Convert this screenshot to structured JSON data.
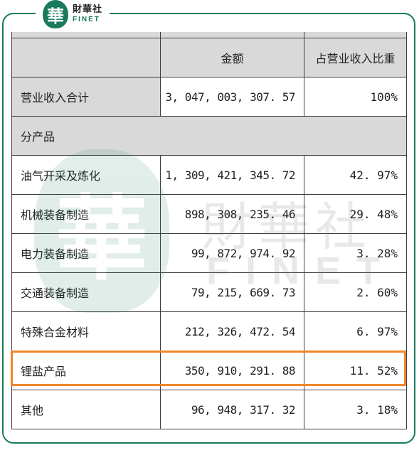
{
  "logo": {
    "mark": "華",
    "cn": "財華社",
    "en": "FINET"
  },
  "watermark": {
    "mark": "華",
    "cn": "財華社",
    "en": "FINET"
  },
  "table": {
    "headers": {
      "amount": "金额",
      "ratio": "占营业收入比重"
    },
    "total": {
      "name": "营业收入合计",
      "amount": "3, 047, 003, 307. 57",
      "ratio": "100%"
    },
    "section": "分产品",
    "rows": [
      {
        "name": "油气开采及炼化",
        "amount": "1, 309, 421, 345. 72",
        "ratio": "42. 97%"
      },
      {
        "name": "机械装备制造",
        "amount": "898, 308, 235. 46",
        "ratio": "29. 48%"
      },
      {
        "name": "电力装备制造",
        "amount": "99, 872, 974. 92",
        "ratio": "3. 28%"
      },
      {
        "name": "交通装备制造",
        "amount": "79, 215, 669. 73",
        "ratio": "2. 60%"
      },
      {
        "name": "特殊合金材料",
        "amount": "212, 326, 472. 54",
        "ratio": "6. 97%"
      },
      {
        "name": "锂盐产品",
        "amount": "350, 910, 291. 88",
        "ratio": "11. 52%"
      },
      {
        "name": "其他",
        "amount": "96, 948, 317. 32",
        "ratio": "3. 18%"
      }
    ]
  },
  "colors": {
    "brand": "#1a7a5e",
    "highlight": "#f0872a",
    "header_bg": "#d9d9d9"
  }
}
